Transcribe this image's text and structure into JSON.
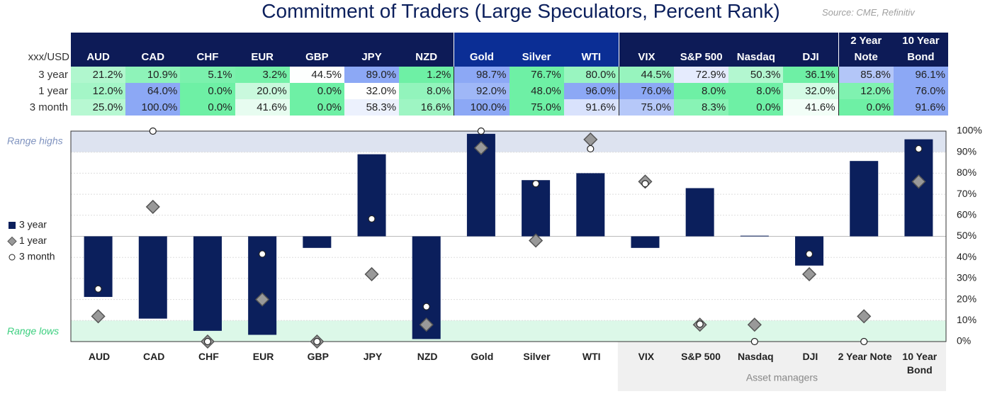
{
  "chart_data": {
    "type": "bar",
    "title": "Commitment of Traders (Large Speculators, Percent Rank)",
    "source": "Source: CME, Refinitiv",
    "row_header": "xxx/USD",
    "categories": [
      "AUD",
      "CAD",
      "CHF",
      "EUR",
      "GBP",
      "JPY",
      "NZD",
      "Gold",
      "Silver",
      "WTI",
      "VIX",
      "S&P 500",
      "Nasdaq",
      "DJI",
      "2 Year Note",
      "10 Year Bond"
    ],
    "series": [
      {
        "name": "3 year",
        "color": "#0b1f5c",
        "marker": "bar",
        "values": [
          21.2,
          10.9,
          5.1,
          3.2,
          44.5,
          89.0,
          1.2,
          98.7,
          76.7,
          80.0,
          44.5,
          72.9,
          50.3,
          36.1,
          85.8,
          96.1
        ],
        "value_labels": [
          "21.2%",
          "10.9%",
          "5.1%",
          "3.2%",
          "44.5%",
          "89.0%",
          "1.2%",
          "98.7%",
          "76.7%",
          "80.0%",
          "44.5%",
          "72.9%",
          "50.3%",
          "36.1%",
          "85.8%",
          "96.1%"
        ]
      },
      {
        "name": "1 year",
        "color": "#999999",
        "marker": "diamond",
        "values": [
          12,
          64,
          0,
          20,
          0,
          32,
          8,
          92,
          48,
          96,
          76,
          8,
          8,
          32,
          12,
          76
        ],
        "value_labels": [
          "12.0%",
          "64.0%",
          "0.0%",
          "20.0%",
          "0.0%",
          "32.0%",
          "8.0%",
          "92.0%",
          "48.0%",
          "96.0%",
          "76.0%",
          "8.0%",
          "8.0%",
          "32.0%",
          "12.0%",
          "76.0%"
        ]
      },
      {
        "name": "3 month",
        "color": "#ffffff",
        "marker": "circle",
        "values": [
          25,
          100,
          0,
          41.6,
          0,
          58.3,
          16.6,
          100,
          75,
          91.6,
          75,
          8.3,
          0,
          41.6,
          0,
          91.6
        ],
        "value_labels": [
          "25.0%",
          "100.0%",
          "0.0%",
          "41.6%",
          "0.0%",
          "58.3%",
          "16.6%",
          "100.0%",
          "75.0%",
          "91.6%",
          "75.0%",
          "8.3%",
          "0.0%",
          "41.6%",
          "0.0%",
          "91.6%"
        ]
      }
    ],
    "bar_base": 50,
    "ylim": [
      0,
      100
    ],
    "yticks": [
      {
        "value": 0,
        "label": "0%"
      },
      {
        "value": 10,
        "label": "10%"
      },
      {
        "value": 20,
        "label": "20%"
      },
      {
        "value": 30,
        "label": "30%"
      },
      {
        "value": 40,
        "label": "40%"
      },
      {
        "value": 50,
        "label": "50%"
      },
      {
        "value": 60,
        "label": "60%"
      },
      {
        "value": 70,
        "label": "70%"
      },
      {
        "value": 80,
        "label": "80%"
      },
      {
        "value": 90,
        "label": "90%"
      },
      {
        "value": 100,
        "label": "100%"
      }
    ],
    "grid": true,
    "bands": [
      {
        "label": "Range highs",
        "range": [
          90,
          100
        ],
        "color": "#dde3f0",
        "text_color": "#7f93bf"
      },
      {
        "label": "Range lows",
        "range": [
          0,
          10
        ],
        "color": "#dcf8e8",
        "text_color": "#3ccf7f"
      }
    ],
    "annotation": "Asset managers"
  }
}
